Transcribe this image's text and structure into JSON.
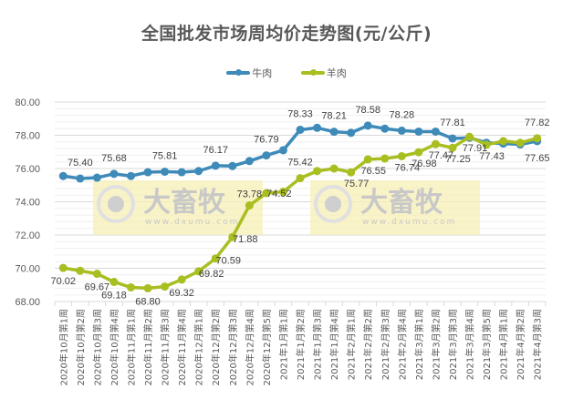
{
  "title": "全国批发市场周均价走势图(元/公斤)",
  "legend": [
    {
      "label": "牛肉",
      "color": "#3E8AB9"
    },
    {
      "label": "羊肉",
      "color": "#A9BE21"
    }
  ],
  "watermark": {
    "text": "大畜牧",
    "url": "www.dxumu.com"
  },
  "chart_data": {
    "type": "line",
    "title": "全国批发市场周均价走势图(元/公斤)",
    "xlabel": "",
    "ylabel": "",
    "ylim": [
      68,
      80
    ],
    "yticks": [
      "68.00",
      "70.00",
      "72.00",
      "74.00",
      "76.00",
      "78.00",
      "80.00"
    ],
    "grid": true,
    "legend_position": "top",
    "categories": [
      "2020年10月第1周",
      "2020年10月第2周",
      "2020年10月第3周",
      "2020年10月第4周",
      "2020年11月第1周",
      "2020年11月第2周",
      "2020年11月第3周",
      "2020年11月第4周",
      "2020年12月第1周",
      "2020年12月第2周",
      "2020年12月第3周",
      "2020年12月第4周",
      "2020年12月第5周",
      "2021年1月第1周",
      "2021年1月第2周",
      "2021年1月第3周",
      "2021年1月第4周",
      "2021年2月第1周",
      "2021年2月第2周",
      "2021年2月第3周",
      "2021年2月第4周",
      "2021年3月第1周",
      "2021年3月第2周",
      "2021年3月第3周",
      "2021年3月第4周",
      "2021年3月第5周",
      "2021年4月第1周",
      "2021年4月第2周",
      "2021年4月第3周"
    ],
    "series": [
      {
        "name": "牛肉",
        "color": "#3E8AB9",
        "values": [
          75.55,
          75.4,
          75.45,
          75.68,
          75.55,
          75.78,
          75.81,
          75.78,
          75.85,
          76.17,
          76.15,
          76.45,
          76.79,
          77.1,
          78.33,
          78.45,
          78.21,
          78.15,
          78.58,
          78.4,
          78.28,
          78.22,
          78.22,
          77.81,
          77.85,
          77.55,
          77.5,
          77.45,
          77.65
        ],
        "labels": {
          "1": "75.40",
          "3": "75.68",
          "6": "75.81",
          "9": "76.17",
          "12": "76.79",
          "14": "78.33",
          "16": "78.21",
          "18": "78.58",
          "20": "78.28",
          "23": "77.81",
          "28": "77.65"
        }
      },
      {
        "name": "羊肉",
        "color": "#A9BE21",
        "values": [
          70.02,
          69.85,
          69.67,
          69.18,
          68.85,
          68.8,
          68.9,
          69.32,
          69.82,
          70.59,
          71.88,
          73.78,
          74.52,
          74.6,
          75.42,
          75.85,
          76.0,
          75.77,
          76.55,
          76.6,
          76.74,
          76.98,
          77.47,
          77.25,
          77.91,
          77.43,
          77.65,
          77.55,
          77.82
        ],
        "labels": {
          "0": "70.02",
          "2": "69.67",
          "3": "69.18",
          "5": "68.80",
          "7": "69.32",
          "8": "69.82",
          "9": "70.59",
          "10": "71.88",
          "11": "73.78",
          "12": "74.52",
          "14": "75.42",
          "17": "75.77",
          "18": "76.55",
          "20": "76.74",
          "21": "76.98",
          "22": "77.47",
          "23": "77.25",
          "24": "77.91",
          "25": "77.43",
          "28": "77.82"
        }
      }
    ]
  }
}
